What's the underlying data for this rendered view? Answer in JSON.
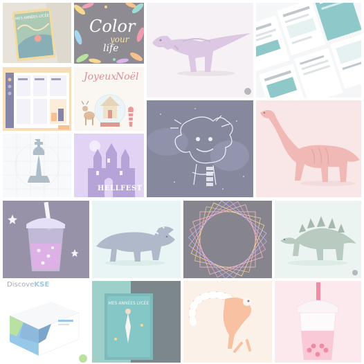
{
  "gallery": {
    "tiles": [
      {
        "name": "book-mockup-mes-annees-lycee",
        "title": "MES ANNÉES LYCÉE",
        "bg": "#d9d2c4"
      },
      {
        "name": "lettering-color-your-life",
        "line1": "Color",
        "line2": "your",
        "line3": "life",
        "bg": "#4a4550"
      },
      {
        "name": "purple-dinosaur",
        "bg": "#f0e9ee"
      },
      {
        "name": "report-layout-spreads",
        "bg": "#eef1f2"
      },
      {
        "name": "ui-dashboard-mockup",
        "bg": "#f4c88e"
      },
      {
        "name": "christmas-card",
        "line1": "Joyeux",
        "line2": "Noël",
        "bg": "#f7f2ec"
      },
      {
        "name": "space-monster-illustration",
        "bg": "#3d3f63"
      },
      {
        "name": "pink-brachiosaurus",
        "bg": "#f6d9da"
      },
      {
        "name": "chess-queen-grid",
        "bg": "#f4f6f7"
      },
      {
        "name": "hellfest-castle-poster",
        "title": "HELLFEST",
        "bg": "#cdb8ec"
      },
      {
        "name": "bubble-tea-night",
        "bg": "#5a4f73"
      },
      {
        "name": "triceratops",
        "bg": "#dcefee"
      },
      {
        "name": "geometric-circle-pattern",
        "bg": "#3c3a4a"
      },
      {
        "name": "stegosaurus",
        "bg": "#dfeee9"
      },
      {
        "name": "discover-box-packaging",
        "title": "Discove",
        "accent": "KSE",
        "bg": "#ffffff"
      },
      {
        "name": "book-mockup-teal",
        "title": "MES ANNÉES LYCÉE",
        "bg": "#2d3e44"
      },
      {
        "name": "lemur-illustration",
        "bg": "#fbe8dc"
      },
      {
        "name": "bubble-tea-pink",
        "bg": "#fadbe4"
      }
    ]
  },
  "colors": {
    "dino_purple": "#c8a6d2",
    "dino_pink": "#e88f8a",
    "dino_blue": "#7f8ea9",
    "dino_green": "#8eab9c",
    "teal": "#4aa7a9",
    "orange": "#f19a4d"
  }
}
